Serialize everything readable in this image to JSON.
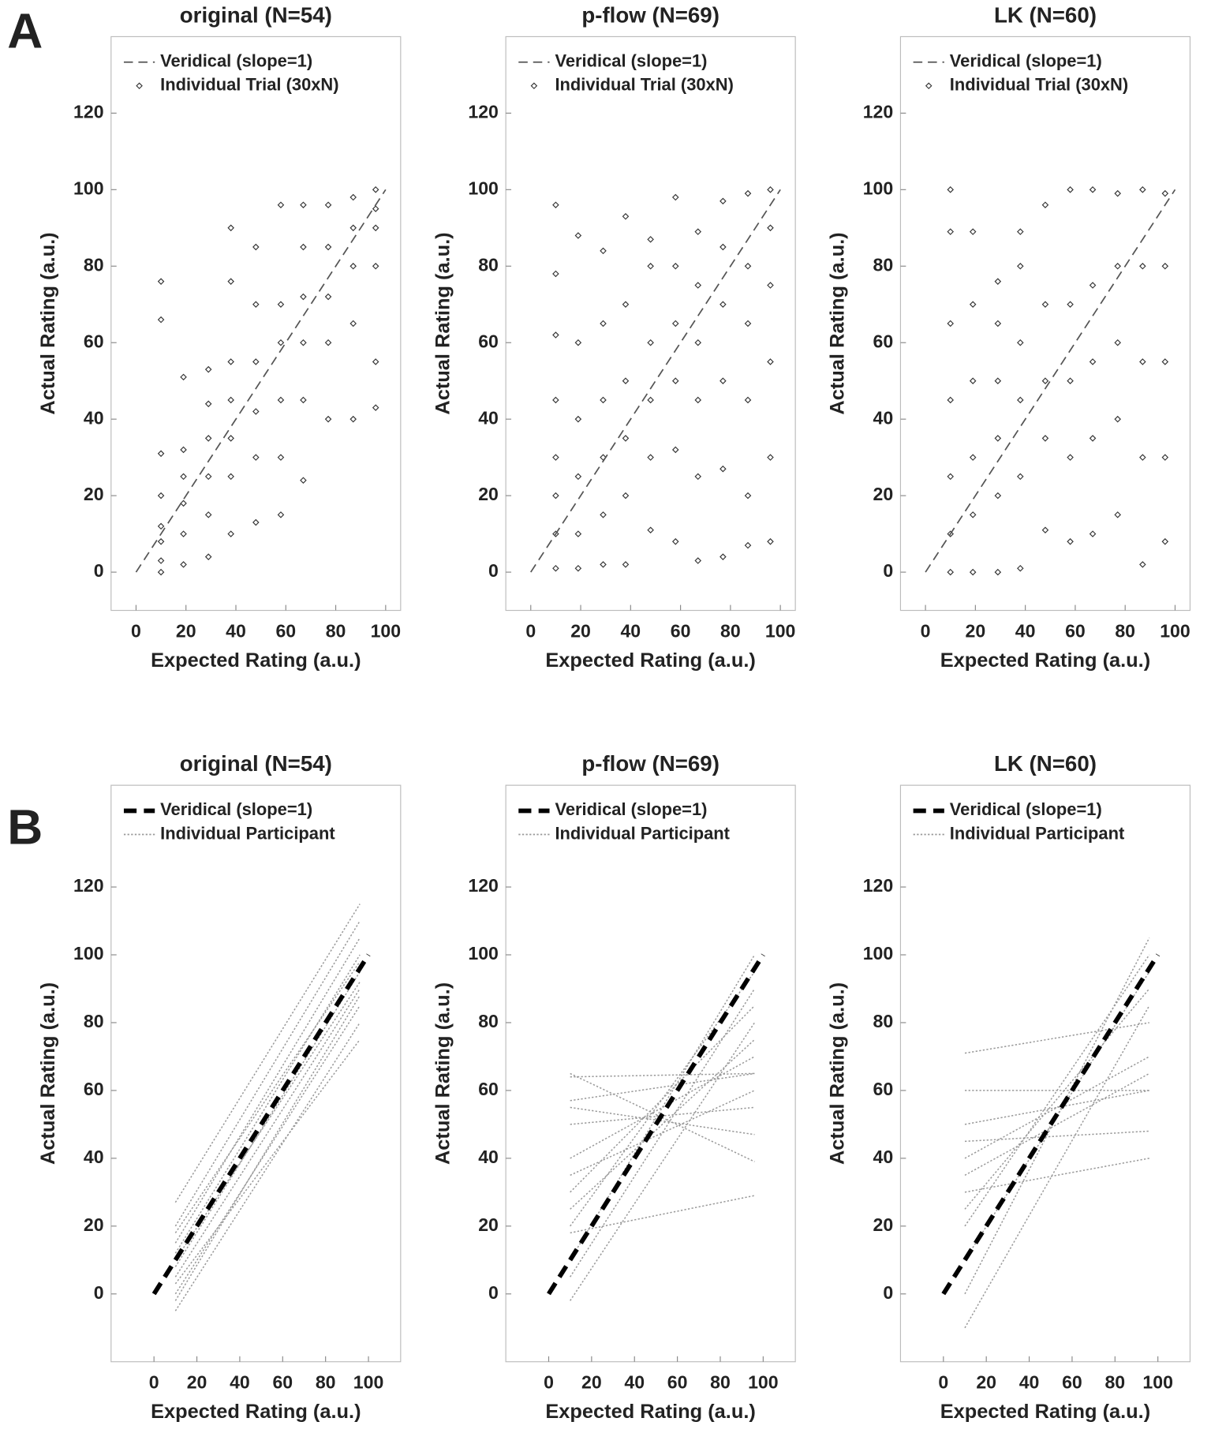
{
  "panel_labels": [
    "A",
    "B"
  ],
  "chart_data": [
    {
      "type": "scatter",
      "title": "original  (N=54)",
      "xlabel": "Expected Rating (a.u.)",
      "ylabel": "Actual Rating (a.u.)",
      "xlim": [
        -10,
        106
      ],
      "ylim": [
        -10,
        140
      ],
      "xticks": [
        0,
        20,
        40,
        60,
        80,
        100
      ],
      "yticks": [
        0,
        20,
        40,
        60,
        80,
        100,
        120
      ],
      "series": [
        {
          "name": "Veridical (slope=1)",
          "color": "#555555",
          "dashed": true,
          "width": 1.5,
          "x": [
            0,
            100
          ],
          "values": [
            0,
            100
          ]
        },
        {
          "name": "Individual Trial (30xN)",
          "color": "#333333",
          "groups": [
            {
              "x": 10,
              "values": [
                0,
                3,
                8,
                12,
                20,
                31,
                66,
                76
              ]
            },
            {
              "x": 19,
              "values": [
                2,
                10,
                18,
                25,
                32,
                51
              ]
            },
            {
              "x": 29,
              "values": [
                4,
                15,
                25,
                35,
                44,
                53
              ]
            },
            {
              "x": 38,
              "values": [
                10,
                25,
                35,
                45,
                55,
                76,
                90
              ]
            },
            {
              "x": 48,
              "values": [
                13,
                30,
                42,
                55,
                70,
                85
              ]
            },
            {
              "x": 58,
              "values": [
                15,
                30,
                45,
                60,
                70,
                96
              ]
            },
            {
              "x": 67,
              "values": [
                24,
                45,
                60,
                72,
                85,
                96
              ]
            },
            {
              "x": 77,
              "values": [
                40,
                60,
                72,
                85,
                96
              ]
            },
            {
              "x": 87,
              "values": [
                40,
                65,
                80,
                90,
                98
              ]
            },
            {
              "x": 96,
              "values": [
                43,
                55,
                80,
                90,
                95,
                100
              ]
            }
          ]
        }
      ]
    },
    {
      "type": "scatter",
      "title": "p-flow  (N=69)",
      "xlabel": "Expected Rating (a.u.)",
      "ylabel": "Actual Rating (a.u.)",
      "xlim": [
        -10,
        106
      ],
      "ylim": [
        -10,
        140
      ],
      "xticks": [
        0,
        20,
        40,
        60,
        80,
        100
      ],
      "yticks": [
        0,
        20,
        40,
        60,
        80,
        100,
        120
      ],
      "series": [
        {
          "name": "Veridical (slope=1)",
          "color": "#555555",
          "dashed": true,
          "width": 1.5,
          "x": [
            0,
            100
          ],
          "values": [
            0,
            100
          ]
        },
        {
          "name": "Individual Trial (30xN)",
          "color": "#333333",
          "groups": [
            {
              "x": 10,
              "values": [
                1,
                10,
                20,
                30,
                45,
                62,
                78,
                96
              ]
            },
            {
              "x": 19,
              "values": [
                1,
                10,
                25,
                40,
                60,
                88
              ]
            },
            {
              "x": 29,
              "values": [
                2,
                15,
                30,
                45,
                65,
                84
              ]
            },
            {
              "x": 38,
              "values": [
                2,
                20,
                35,
                50,
                70,
                93
              ]
            },
            {
              "x": 48,
              "values": [
                11,
                30,
                45,
                60,
                80,
                87
              ]
            },
            {
              "x": 58,
              "values": [
                8,
                32,
                50,
                65,
                80,
                98
              ]
            },
            {
              "x": 67,
              "values": [
                3,
                25,
                45,
                60,
                75,
                89
              ]
            },
            {
              "x": 77,
              "values": [
                4,
                27,
                50,
                70,
                85,
                97
              ]
            },
            {
              "x": 87,
              "values": [
                7,
                20,
                45,
                65,
                80,
                99
              ]
            },
            {
              "x": 96,
              "values": [
                8,
                30,
                55,
                75,
                90,
                100
              ]
            }
          ]
        }
      ]
    },
    {
      "type": "scatter",
      "title": "LK  (N=60)",
      "xlabel": "Expected Rating (a.u.)",
      "ylabel": "Actual Rating (a.u.)",
      "xlim": [
        -10,
        106
      ],
      "ylim": [
        -10,
        140
      ],
      "xticks": [
        0,
        20,
        40,
        60,
        80,
        100
      ],
      "yticks": [
        0,
        20,
        40,
        60,
        80,
        100,
        120
      ],
      "series": [
        {
          "name": "Veridical (slope=1)",
          "color": "#555555",
          "dashed": true,
          "width": 1.5,
          "x": [
            0,
            100
          ],
          "values": [
            0,
            100
          ]
        },
        {
          "name": "Individual Trial (30xN)",
          "color": "#333333",
          "groups": [
            {
              "x": 10,
              "values": [
                0,
                10,
                25,
                45,
                65,
                89,
                100
              ]
            },
            {
              "x": 19,
              "values": [
                0,
                15,
                30,
                50,
                70,
                89
              ]
            },
            {
              "x": 29,
              "values": [
                0,
                20,
                35,
                50,
                65,
                76
              ]
            },
            {
              "x": 38,
              "values": [
                1,
                25,
                45,
                60,
                80,
                89
              ]
            },
            {
              "x": 48,
              "values": [
                11,
                35,
                50,
                70,
                96
              ]
            },
            {
              "x": 58,
              "values": [
                8,
                30,
                50,
                70,
                100
              ]
            },
            {
              "x": 67,
              "values": [
                10,
                35,
                55,
                75,
                100
              ]
            },
            {
              "x": 77,
              "values": [
                15,
                40,
                60,
                80,
                99
              ]
            },
            {
              "x": 87,
              "values": [
                2,
                30,
                55,
                80,
                100
              ]
            },
            {
              "x": 96,
              "values": [
                8,
                30,
                55,
                80,
                99
              ]
            }
          ]
        }
      ]
    },
    {
      "type": "line",
      "title": "original  (N=54)",
      "xlabel": "Expected Rating (a.u.)",
      "ylabel": "Actual Rating (a.u.)",
      "xlim": [
        -20,
        115
      ],
      "ylim": [
        -20,
        150
      ],
      "xticks": [
        0,
        20,
        40,
        60,
        80,
        100
      ],
      "yticks": [
        0,
        20,
        40,
        60,
        80,
        100,
        120
      ],
      "series": [
        {
          "name": "Veridical (slope=1)",
          "color": "#000000",
          "dashed": true,
          "width": 5,
          "x": [
            0,
            100
          ],
          "values": [
            0,
            100
          ]
        },
        {
          "name": "Individual Participant",
          "color": "#999999",
          "x": [
            10,
            96
          ],
          "lines": [
            [
              -5,
              80
            ],
            [
              0,
              85
            ],
            [
              5,
              90
            ],
            [
              8,
              95
            ],
            [
              12,
              100
            ],
            [
              15,
              105
            ],
            [
              20,
              110
            ],
            [
              27,
              115
            ],
            [
              3,
              75
            ],
            [
              10,
              92
            ],
            [
              -2,
              88
            ],
            [
              18,
              98
            ]
          ]
        }
      ]
    },
    {
      "type": "line",
      "title": "p-flow  (N=69)",
      "xlabel": "Expected Rating (a.u.)",
      "ylabel": "Actual Rating (a.u.)",
      "xlim": [
        -20,
        115
      ],
      "ylim": [
        -20,
        150
      ],
      "xticks": [
        0,
        20,
        40,
        60,
        80,
        100
      ],
      "yticks": [
        0,
        20,
        40,
        60,
        80,
        100,
        120
      ],
      "series": [
        {
          "name": "Veridical (slope=1)",
          "color": "#000000",
          "dashed": true,
          "width": 5,
          "x": [
            0,
            100
          ],
          "values": [
            0,
            100
          ]
        },
        {
          "name": "Individual Participant",
          "color": "#999999",
          "x": [
            10,
            96
          ],
          "lines": [
            [
              -2,
              80
            ],
            [
              10,
              100
            ],
            [
              20,
              95
            ],
            [
              30,
              85
            ],
            [
              40,
              70
            ],
            [
              57,
              65
            ],
            [
              64,
              65
            ],
            [
              55,
              47
            ],
            [
              65,
              39
            ],
            [
              18,
              29
            ],
            [
              25,
              75
            ],
            [
              5,
              90
            ],
            [
              35,
              60
            ],
            [
              50,
              55
            ]
          ]
        }
      ]
    },
    {
      "type": "line",
      "title": "LK  (N=60)",
      "xlabel": "Expected Rating (a.u.)",
      "ylabel": "Actual Rating (a.u.)",
      "xlim": [
        -20,
        115
      ],
      "ylim": [
        -20,
        150
      ],
      "xticks": [
        0,
        20,
        40,
        60,
        80,
        100
      ],
      "yticks": [
        0,
        20,
        40,
        60,
        80,
        100,
        120
      ],
      "series": [
        {
          "name": "Veridical (slope=1)",
          "color": "#000000",
          "dashed": true,
          "width": 5,
          "x": [
            0,
            100
          ],
          "values": [
            0,
            100
          ]
        },
        {
          "name": "Individual Participant",
          "color": "#999999",
          "x": [
            10,
            96
          ],
          "lines": [
            [
              -10,
              85
            ],
            [
              0,
              105
            ],
            [
              10,
              95
            ],
            [
              25,
              90
            ],
            [
              40,
              70
            ],
            [
              50,
              60
            ],
            [
              60,
              60
            ],
            [
              71,
              80
            ],
            [
              30,
              40
            ],
            [
              20,
              100
            ],
            [
              45,
              48
            ],
            [
              35,
              65
            ]
          ]
        }
      ]
    }
  ]
}
